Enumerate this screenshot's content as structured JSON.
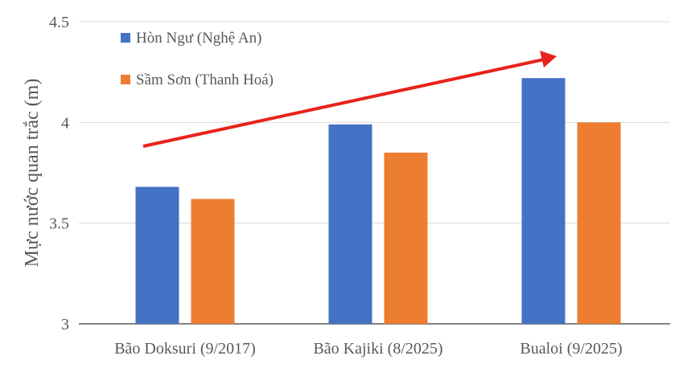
{
  "chart_data": {
    "type": "bar",
    "categories": [
      "Bão Doksuri (9/2017)",
      "Bão Kajiki (8/2025)",
      "Bualoi (9/2025)"
    ],
    "series": [
      {
        "name": "Hòn Ngư (Nghệ An)",
        "color": "#4472C4",
        "values": [
          3.68,
          3.99,
          4.22
        ]
      },
      {
        "name": "Sầm Sơn (Thanh Hoá)",
        "color": "#ED7D31",
        "values": [
          3.62,
          3.85,
          4.0
        ]
      }
    ],
    "title": "",
    "xlabel": "",
    "ylabel": "Mực nước quan trắc (m)",
    "ylim": [
      3,
      4.5
    ],
    "yticks": [
      "3",
      "3.5",
      "4",
      "4.5"
    ],
    "grid": true,
    "legend": "top-left",
    "annotation": {
      "type": "arrow",
      "color": "#E8231B",
      "direction": "increasing trend"
    }
  }
}
